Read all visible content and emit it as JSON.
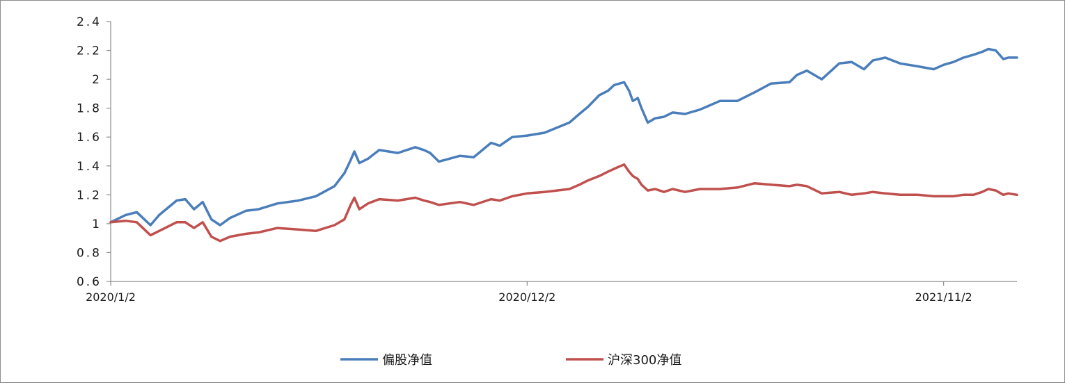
{
  "chart_data": {
    "type": "line",
    "title": "",
    "xlabel": "",
    "ylabel": "",
    "ylim": [
      0.6,
      2.4
    ],
    "yticks": [
      "0.6",
      "0.8",
      "1",
      "1.2",
      "1.4",
      "1.6",
      "1.8",
      "2",
      "2.2",
      "2.4"
    ],
    "ytick_values": [
      0.6,
      0.8,
      1.0,
      1.2,
      1.4,
      1.6,
      1.8,
      2.0,
      2.2,
      2.4
    ],
    "xticks": [
      "2020/1/2",
      "2020/12/2",
      "2021/11/2"
    ],
    "xtick_dates": [
      "2020-01-02",
      "2020-12-02",
      "2021-11-02"
    ],
    "xlim": [
      "2020-01-02",
      "2021-12-31"
    ],
    "grid": false,
    "legend_position": "bottom",
    "series": [
      {
        "name": "偏股净值",
        "color": "#4a7ebb",
        "points": [
          [
            "2020-01-02",
            1.01
          ],
          [
            "2020-01-14",
            1.06
          ],
          [
            "2020-01-23",
            1.08
          ],
          [
            "2020-02-03",
            0.99
          ],
          [
            "2020-02-10",
            1.06
          ],
          [
            "2020-02-24",
            1.16
          ],
          [
            "2020-03-02",
            1.17
          ],
          [
            "2020-03-09",
            1.1
          ],
          [
            "2020-03-16",
            1.15
          ],
          [
            "2020-03-23",
            1.03
          ],
          [
            "2020-03-30",
            0.99
          ],
          [
            "2020-04-07",
            1.04
          ],
          [
            "2020-04-20",
            1.09
          ],
          [
            "2020-04-30",
            1.1
          ],
          [
            "2020-05-15",
            1.14
          ],
          [
            "2020-06-01",
            1.16
          ],
          [
            "2020-06-15",
            1.19
          ],
          [
            "2020-06-30",
            1.26
          ],
          [
            "2020-07-08",
            1.35
          ],
          [
            "2020-07-13",
            1.44
          ],
          [
            "2020-07-16",
            1.5
          ],
          [
            "2020-07-20",
            1.42
          ],
          [
            "2020-07-27",
            1.45
          ],
          [
            "2020-08-05",
            1.51
          ],
          [
            "2020-08-20",
            1.49
          ],
          [
            "2020-09-03",
            1.53
          ],
          [
            "2020-09-10",
            1.51
          ],
          [
            "2020-09-15",
            1.49
          ],
          [
            "2020-09-22",
            1.43
          ],
          [
            "2020-10-09",
            1.47
          ],
          [
            "2020-10-20",
            1.46
          ],
          [
            "2020-11-03",
            1.56
          ],
          [
            "2020-11-10",
            1.54
          ],
          [
            "2020-11-20",
            1.6
          ],
          [
            "2020-12-02",
            1.61
          ],
          [
            "2020-12-16",
            1.63
          ],
          [
            "2021-01-05",
            1.7
          ],
          [
            "2021-01-13",
            1.76
          ],
          [
            "2021-01-20",
            1.81
          ],
          [
            "2021-01-29",
            1.89
          ],
          [
            "2021-02-05",
            1.92
          ],
          [
            "2021-02-10",
            1.96
          ],
          [
            "2021-02-18",
            1.98
          ],
          [
            "2021-02-22",
            1.92
          ],
          [
            "2021-02-25",
            1.85
          ],
          [
            "2021-03-01",
            1.87
          ],
          [
            "2021-03-04",
            1.8
          ],
          [
            "2021-03-09",
            1.7
          ],
          [
            "2021-03-15",
            1.73
          ],
          [
            "2021-03-22",
            1.74
          ],
          [
            "2021-03-29",
            1.77
          ],
          [
            "2021-04-08",
            1.76
          ],
          [
            "2021-04-20",
            1.79
          ],
          [
            "2021-05-06",
            1.85
          ],
          [
            "2021-05-20",
            1.85
          ],
          [
            "2021-06-03",
            1.91
          ],
          [
            "2021-06-16",
            1.97
          ],
          [
            "2021-07-01",
            1.98
          ],
          [
            "2021-07-07",
            2.03
          ],
          [
            "2021-07-15",
            2.06
          ],
          [
            "2021-07-27",
            2.0
          ],
          [
            "2021-08-10",
            2.11
          ],
          [
            "2021-08-20",
            2.12
          ],
          [
            "2021-08-30",
            2.07
          ],
          [
            "2021-09-06",
            2.13
          ],
          [
            "2021-09-16",
            2.15
          ],
          [
            "2021-09-28",
            2.11
          ],
          [
            "2021-10-12",
            2.09
          ],
          [
            "2021-10-25",
            2.07
          ],
          [
            "2021-11-02",
            2.1
          ],
          [
            "2021-11-10",
            2.12
          ],
          [
            "2021-11-18",
            2.15
          ],
          [
            "2021-11-26",
            2.17
          ],
          [
            "2021-12-03",
            2.19
          ],
          [
            "2021-12-08",
            2.21
          ],
          [
            "2021-12-14",
            2.2
          ],
          [
            "2021-12-20",
            2.14
          ],
          [
            "2021-12-24",
            2.15
          ],
          [
            "2021-12-31",
            2.15
          ]
        ]
      },
      {
        "name": "沪深300净值",
        "color": "#c0504d",
        "points": [
          [
            "2020-01-02",
            1.01
          ],
          [
            "2020-01-14",
            1.02
          ],
          [
            "2020-01-23",
            1.01
          ],
          [
            "2020-02-03",
            0.92
          ],
          [
            "2020-02-10",
            0.95
          ],
          [
            "2020-02-24",
            1.01
          ],
          [
            "2020-03-02",
            1.01
          ],
          [
            "2020-03-09",
            0.97
          ],
          [
            "2020-03-16",
            1.01
          ],
          [
            "2020-03-23",
            0.91
          ],
          [
            "2020-03-30",
            0.88
          ],
          [
            "2020-04-07",
            0.91
          ],
          [
            "2020-04-20",
            0.93
          ],
          [
            "2020-04-30",
            0.94
          ],
          [
            "2020-05-15",
            0.97
          ],
          [
            "2020-06-01",
            0.96
          ],
          [
            "2020-06-15",
            0.95
          ],
          [
            "2020-06-30",
            0.99
          ],
          [
            "2020-07-08",
            1.03
          ],
          [
            "2020-07-13",
            1.13
          ],
          [
            "2020-07-16",
            1.18
          ],
          [
            "2020-07-20",
            1.1
          ],
          [
            "2020-07-27",
            1.14
          ],
          [
            "2020-08-05",
            1.17
          ],
          [
            "2020-08-20",
            1.16
          ],
          [
            "2020-09-03",
            1.18
          ],
          [
            "2020-09-10",
            1.16
          ],
          [
            "2020-09-15",
            1.15
          ],
          [
            "2020-09-22",
            1.13
          ],
          [
            "2020-10-09",
            1.15
          ],
          [
            "2020-10-20",
            1.13
          ],
          [
            "2020-11-03",
            1.17
          ],
          [
            "2020-11-10",
            1.16
          ],
          [
            "2020-11-20",
            1.19
          ],
          [
            "2020-12-02",
            1.21
          ],
          [
            "2020-12-16",
            1.22
          ],
          [
            "2021-01-05",
            1.24
          ],
          [
            "2021-01-13",
            1.27
          ],
          [
            "2021-01-20",
            1.3
          ],
          [
            "2021-01-29",
            1.33
          ],
          [
            "2021-02-05",
            1.36
          ],
          [
            "2021-02-10",
            1.38
          ],
          [
            "2021-02-18",
            1.41
          ],
          [
            "2021-02-22",
            1.36
          ],
          [
            "2021-02-25",
            1.33
          ],
          [
            "2021-03-01",
            1.31
          ],
          [
            "2021-03-04",
            1.27
          ],
          [
            "2021-03-09",
            1.23
          ],
          [
            "2021-03-15",
            1.24
          ],
          [
            "2021-03-22",
            1.22
          ],
          [
            "2021-03-29",
            1.24
          ],
          [
            "2021-04-08",
            1.22
          ],
          [
            "2021-04-20",
            1.24
          ],
          [
            "2021-05-06",
            1.24
          ],
          [
            "2021-05-20",
            1.25
          ],
          [
            "2021-06-03",
            1.28
          ],
          [
            "2021-06-16",
            1.27
          ],
          [
            "2021-07-01",
            1.26
          ],
          [
            "2021-07-07",
            1.27
          ],
          [
            "2021-07-15",
            1.26
          ],
          [
            "2021-07-27",
            1.21
          ],
          [
            "2021-08-10",
            1.22
          ],
          [
            "2021-08-20",
            1.2
          ],
          [
            "2021-08-30",
            1.21
          ],
          [
            "2021-09-06",
            1.22
          ],
          [
            "2021-09-16",
            1.21
          ],
          [
            "2021-09-28",
            1.2
          ],
          [
            "2021-10-12",
            1.2
          ],
          [
            "2021-10-25",
            1.19
          ],
          [
            "2021-11-02",
            1.19
          ],
          [
            "2021-11-10",
            1.19
          ],
          [
            "2021-11-18",
            1.2
          ],
          [
            "2021-11-26",
            1.2
          ],
          [
            "2021-12-03",
            1.22
          ],
          [
            "2021-12-08",
            1.24
          ],
          [
            "2021-12-14",
            1.23
          ],
          [
            "2021-12-20",
            1.2
          ],
          [
            "2021-12-24",
            1.21
          ],
          [
            "2021-12-31",
            1.2
          ]
        ]
      }
    ]
  }
}
